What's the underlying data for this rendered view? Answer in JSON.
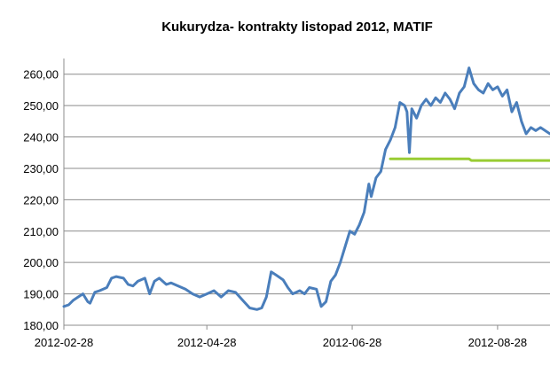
{
  "chart_data": {
    "type": "line",
    "title": "Kukurydza- kontrakty listopad 2012, MATIF",
    "xlabel": "",
    "ylabel": "",
    "ylim": [
      180,
      265
    ],
    "yticks": [
      180,
      190,
      200,
      210,
      220,
      230,
      240,
      250,
      260
    ],
    "ytick_labels": [
      "180,00",
      "190,00",
      "200,00",
      "210,00",
      "220,00",
      "230,00",
      "240,00",
      "250,00",
      "260,00"
    ],
    "xtick_labels": [
      "2012-02-28",
      "2012-04-28",
      "2012-06-28",
      "2012-08-28"
    ],
    "xtick_dates": [
      "2012-02-28",
      "2012-04-28",
      "2012-06-28",
      "2012-08-28"
    ],
    "xlim": [
      "2012-02-28",
      "2012-09-19"
    ],
    "grid": "horizontal",
    "legend": "none",
    "series": [
      {
        "color": "#4a7ebb",
        "points": [
          [
            "2012-02-28",
            186.0
          ],
          [
            "2012-03-01",
            186.5
          ],
          [
            "2012-03-03",
            188.0
          ],
          [
            "2012-03-05",
            189.0
          ],
          [
            "2012-03-07",
            190.0
          ],
          [
            "2012-03-09",
            187.5
          ],
          [
            "2012-03-10",
            187.0
          ],
          [
            "2012-03-12",
            190.5
          ],
          [
            "2012-03-14",
            191.0
          ],
          [
            "2012-03-17",
            192.0
          ],
          [
            "2012-03-19",
            195.0
          ],
          [
            "2012-03-21",
            195.5
          ],
          [
            "2012-03-24",
            195.0
          ],
          [
            "2012-03-26",
            193.0
          ],
          [
            "2012-03-28",
            192.5
          ],
          [
            "2012-03-30",
            194.0
          ],
          [
            "2012-04-02",
            195.0
          ],
          [
            "2012-04-04",
            190.0
          ],
          [
            "2012-04-06",
            194.0
          ],
          [
            "2012-04-08",
            195.0
          ],
          [
            "2012-04-11",
            193.0
          ],
          [
            "2012-04-13",
            193.5
          ],
          [
            "2012-04-16",
            192.5
          ],
          [
            "2012-04-19",
            191.5
          ],
          [
            "2012-04-22",
            190.0
          ],
          [
            "2012-04-25",
            189.0
          ],
          [
            "2012-04-28",
            190.0
          ],
          [
            "2012-05-01",
            191.0
          ],
          [
            "2012-05-04",
            189.0
          ],
          [
            "2012-05-07",
            191.0
          ],
          [
            "2012-05-10",
            190.5
          ],
          [
            "2012-05-13",
            188.0
          ],
          [
            "2012-05-16",
            185.5
          ],
          [
            "2012-05-19",
            185.0
          ],
          [
            "2012-05-21",
            185.5
          ],
          [
            "2012-05-23",
            189.0
          ],
          [
            "2012-05-25",
            197.0
          ],
          [
            "2012-05-27",
            196.0
          ],
          [
            "2012-05-30",
            194.5
          ],
          [
            "2012-06-01",
            192.0
          ],
          [
            "2012-06-03",
            190.0
          ],
          [
            "2012-06-06",
            191.0
          ],
          [
            "2012-06-08",
            190.0
          ],
          [
            "2012-06-10",
            192.0
          ],
          [
            "2012-06-13",
            191.5
          ],
          [
            "2012-06-15",
            186.0
          ],
          [
            "2012-06-17",
            187.5
          ],
          [
            "2012-06-19",
            194.0
          ],
          [
            "2012-06-21",
            196.0
          ],
          [
            "2012-06-23",
            200.0
          ],
          [
            "2012-06-25",
            205.0
          ],
          [
            "2012-06-27",
            210.0
          ],
          [
            "2012-06-29",
            209.0
          ],
          [
            "2012-07-01",
            212.0
          ],
          [
            "2012-07-03",
            216.0
          ],
          [
            "2012-07-05",
            225.0
          ],
          [
            "2012-07-06",
            221.0
          ],
          [
            "2012-07-08",
            227.0
          ],
          [
            "2012-07-10",
            229.0
          ],
          [
            "2012-07-12",
            236.0
          ],
          [
            "2012-07-14",
            239.0
          ],
          [
            "2012-07-16",
            243.0
          ],
          [
            "2012-07-18",
            251.0
          ],
          [
            "2012-07-20",
            250.0
          ],
          [
            "2012-07-21",
            248.0
          ],
          [
            "2012-07-22",
            235.0
          ],
          [
            "2012-07-23",
            249.0
          ],
          [
            "2012-07-25",
            246.0
          ],
          [
            "2012-07-27",
            250.0
          ],
          [
            "2012-07-29",
            252.0
          ],
          [
            "2012-07-31",
            250.0
          ],
          [
            "2012-08-02",
            252.5
          ],
          [
            "2012-08-04",
            251.0
          ],
          [
            "2012-08-06",
            254.0
          ],
          [
            "2012-08-08",
            252.0
          ],
          [
            "2012-08-10",
            249.0
          ],
          [
            "2012-08-12",
            254.0
          ],
          [
            "2012-08-14",
            256.0
          ],
          [
            "2012-08-16",
            262.0
          ],
          [
            "2012-08-18",
            257.0
          ],
          [
            "2012-08-20",
            255.0
          ],
          [
            "2012-08-22",
            254.0
          ],
          [
            "2012-08-24",
            257.0
          ],
          [
            "2012-08-26",
            255.0
          ],
          [
            "2012-08-28",
            256.0
          ],
          [
            "2012-08-30",
            253.0
          ],
          [
            "2012-09-01",
            255.0
          ],
          [
            "2012-09-03",
            248.0
          ],
          [
            "2012-09-05",
            251.0
          ],
          [
            "2012-09-07",
            245.0
          ],
          [
            "2012-09-09",
            241.0
          ],
          [
            "2012-09-11",
            243.0
          ],
          [
            "2012-09-13",
            242.0
          ],
          [
            "2012-09-15",
            243.0
          ],
          [
            "2012-09-19",
            241.0
          ]
        ]
      },
      {
        "color": "#99cc33",
        "points": [
          [
            "2012-07-14",
            233.0
          ],
          [
            "2012-08-16",
            233.0
          ],
          [
            "2012-08-17",
            232.5
          ],
          [
            "2012-09-19",
            232.5
          ]
        ]
      }
    ]
  }
}
